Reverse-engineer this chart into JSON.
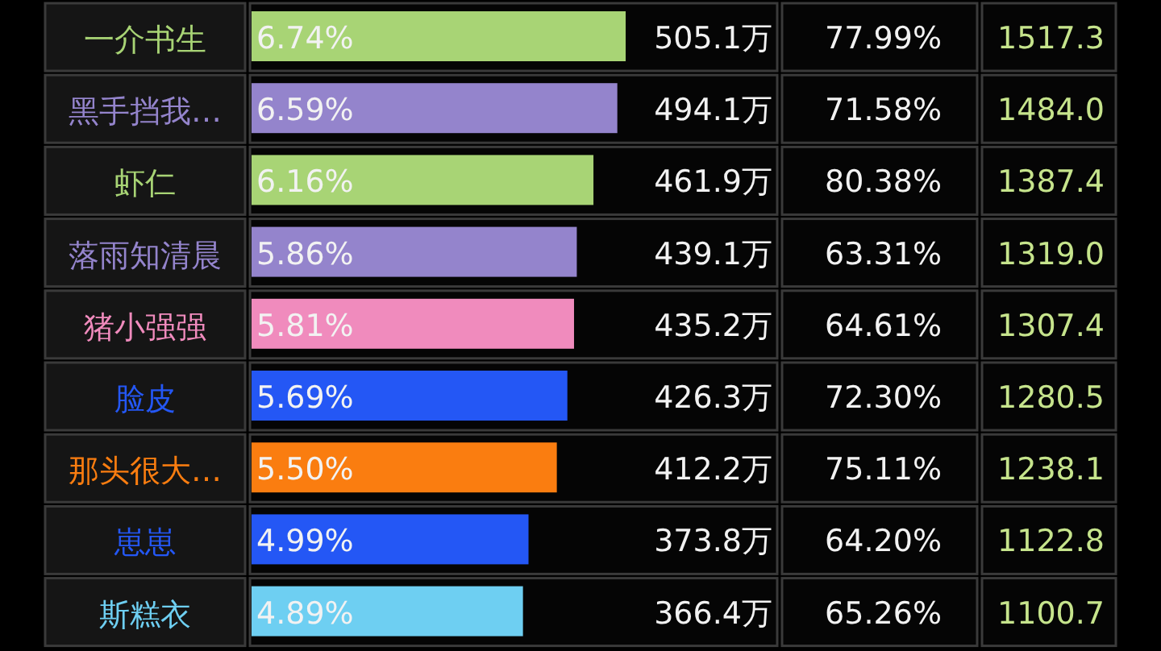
{
  "chart_data": [
    {
      "type": "bar",
      "orientation": "horizontal",
      "categories": [
        "一介书生",
        "黑手挡我…",
        "虾仁",
        "落雨知清晨",
        "猪小强强",
        "脸皮",
        "那头很大…",
        "崽崽",
        "斯糕衣"
      ],
      "values": [
        6.74,
        6.59,
        6.16,
        5.86,
        5.81,
        5.69,
        5.5,
        4.99,
        4.89
      ],
      "colors": [
        "#a8d475",
        "#9484cc",
        "#a8d475",
        "#9484cc",
        "#f08bbd",
        "#2457f5",
        "#fa7d10",
        "#2457f5",
        "#6ecff2"
      ],
      "value_labels": [
        "6.74%",
        "6.59%",
        "6.16%",
        "5.86%",
        "5.81%",
        "5.69%",
        "5.50%",
        "4.99%",
        "4.89%"
      ]
    },
    {
      "type": "other",
      "annotations": [
        "505.1万",
        "494.1万",
        "461.9万",
        "439.1万",
        "435.2万",
        "426.3万",
        "412.2万",
        "373.8万",
        "366.4万"
      ]
    },
    {
      "type": "other",
      "annotations": [
        "77.99%",
        "71.58%",
        "80.38%",
        "63.31%",
        "64.61%",
        "72.30%",
        "75.11%",
        "64.20%",
        "65.26%"
      ]
    },
    {
      "type": "other",
      "annotations": [
        "1517.3",
        "1484.0",
        "1387.4",
        "1319.0",
        "1307.4",
        "1280.5",
        "1238.1",
        "1122.8",
        "1100.7"
      ]
    }
  ]
}
